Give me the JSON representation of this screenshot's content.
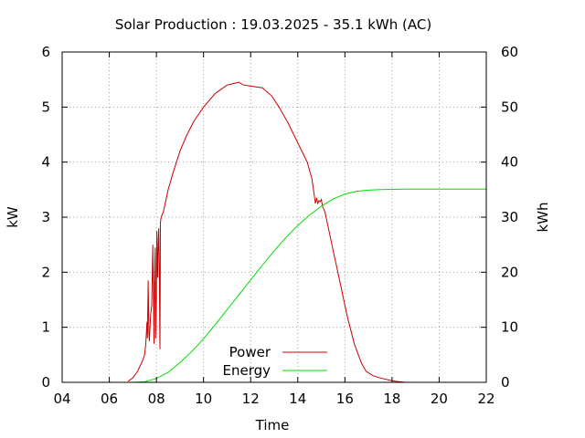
{
  "chart_data": {
    "type": "line",
    "title": "Solar Production : 19.03.2025 - 35.1 kWh (AC)",
    "xlabel": "Time",
    "ylabel": "kW",
    "y2label": "kWh",
    "xlim": [
      4,
      22
    ],
    "ylim": [
      0,
      6
    ],
    "y2lim": [
      0,
      60
    ],
    "x_ticks": [
      "04",
      "06",
      "08",
      "10",
      "12",
      "14",
      "16",
      "18",
      "20",
      "22"
    ],
    "y_ticks": [
      "0",
      "1",
      "2",
      "3",
      "4",
      "5",
      "6"
    ],
    "y2_ticks": [
      "0",
      "10",
      "20",
      "30",
      "40",
      "50",
      "60"
    ],
    "grid": true,
    "legend_position": "bottom-center",
    "series": [
      {
        "name": "Power",
        "axis": "y",
        "color": "#cc0000",
        "x": [
          6.8,
          7.0,
          7.2,
          7.4,
          7.5,
          7.55,
          7.6,
          7.62,
          7.65,
          7.68,
          7.7,
          7.75,
          7.8,
          7.85,
          7.9,
          7.92,
          7.95,
          7.97,
          8.0,
          8.02,
          8.05,
          8.08,
          8.1,
          8.12,
          8.15,
          8.17,
          8.2,
          8.25,
          8.3,
          8.32,
          8.35,
          8.4,
          8.5,
          8.7,
          9.0,
          9.3,
          9.6,
          10.0,
          10.5,
          11.0,
          11.3,
          11.5,
          11.7,
          12.0,
          12.5,
          12.9,
          13.2,
          13.6,
          14.0,
          14.4,
          14.6,
          14.7,
          14.75,
          14.8,
          14.85,
          14.9,
          14.95,
          15.0,
          15.05,
          15.1,
          15.15,
          15.2,
          15.3,
          15.5,
          15.8,
          16.1,
          16.4,
          16.7,
          16.9,
          17.2,
          17.5,
          18.0,
          18.3,
          18.6
        ],
        "values": [
          0.02,
          0.08,
          0.2,
          0.38,
          0.5,
          0.7,
          1.1,
          0.8,
          1.85,
          0.9,
          0.75,
          1.2,
          1.4,
          2.5,
          0.7,
          1.8,
          2.45,
          0.8,
          1.5,
          2.75,
          1.9,
          2.6,
          2.8,
          2.2,
          0.6,
          2.9,
          3.0,
          3.05,
          3.1,
          3.15,
          3.2,
          3.3,
          3.5,
          3.8,
          4.2,
          4.5,
          4.75,
          5.0,
          5.25,
          5.4,
          5.43,
          5.45,
          5.4,
          5.38,
          5.35,
          5.2,
          5.0,
          4.7,
          4.35,
          4.0,
          3.7,
          3.4,
          3.25,
          3.35,
          3.25,
          3.3,
          3.28,
          3.32,
          3.2,
          3.15,
          3.1,
          3.0,
          2.8,
          2.4,
          1.8,
          1.2,
          0.7,
          0.35,
          0.2,
          0.12,
          0.08,
          0.03,
          0.01,
          0.0
        ]
      },
      {
        "name": "Energy",
        "axis": "y2",
        "color": "#00dd00",
        "x": [
          7.0,
          7.5,
          8.0,
          8.5,
          9.0,
          9.5,
          10.0,
          10.5,
          11.0,
          11.5,
          12.0,
          12.5,
          13.0,
          13.5,
          14.0,
          14.5,
          15.0,
          15.5,
          16.0,
          16.5,
          17.0,
          17.5,
          18.0,
          18.5,
          19.0,
          20.0,
          21.0,
          22.0
        ],
        "values": [
          0.0,
          0.1,
          0.7,
          1.8,
          3.6,
          5.6,
          7.9,
          10.5,
          13.2,
          15.9,
          18.6,
          21.3,
          23.9,
          26.3,
          28.5,
          30.4,
          32.0,
          33.3,
          34.2,
          34.7,
          34.9,
          35.0,
          35.05,
          35.1,
          35.1,
          35.1,
          35.1,
          35.1
        ]
      }
    ]
  }
}
